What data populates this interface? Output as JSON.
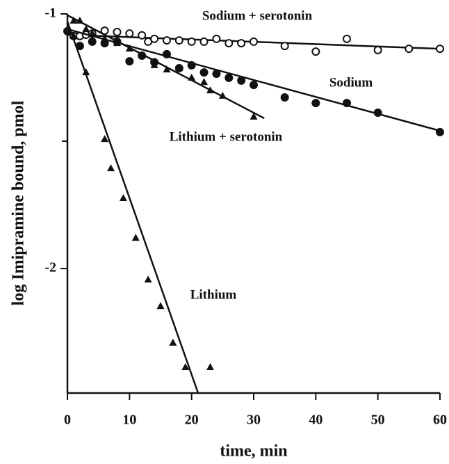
{
  "chart_data": {
    "type": "scatter",
    "x_label": "time, min",
    "y_label": "log Imipramine bound, pmol",
    "xlim": [
      0,
      60
    ],
    "xticks": [
      0,
      10,
      20,
      30,
      40,
      50,
      60
    ],
    "ylim": [
      -2.489,
      -1
    ],
    "yticks": [
      -1,
      -2
    ],
    "minor_yticks": [
      -1.5
    ],
    "grid": false,
    "series": [
      {
        "name": "Sodium + serotonin",
        "marker": "open-circle",
        "color": "#111111",
        "x": [
          1,
          2,
          3,
          4,
          6,
          8,
          10,
          12,
          13,
          14,
          16,
          18,
          20,
          22,
          24,
          26,
          28,
          30,
          35,
          40,
          45,
          50,
          55,
          60
        ],
        "values": [
          -1.087,
          -1.087,
          -1.082,
          -1.077,
          -1.066,
          -1.071,
          -1.077,
          -1.084,
          -1.109,
          -1.098,
          -1.104,
          -1.104,
          -1.109,
          -1.109,
          -1.098,
          -1.115,
          -1.115,
          -1.109,
          -1.126,
          -1.148,
          -1.098,
          -1.142,
          -1.137,
          -1.137
        ],
        "fit_x": [
          0,
          60
        ],
        "fit_y": [
          -1.082,
          -1.137
        ]
      },
      {
        "name": "Sodium",
        "marker": "filled-circle",
        "color": "#111111",
        "x": [
          0,
          2,
          4,
          6,
          8,
          10,
          12,
          14,
          16,
          18,
          20,
          22,
          24,
          26,
          28,
          30,
          35,
          40,
          45,
          50,
          60
        ],
        "values": [
          -1.068,
          -1.126,
          -1.109,
          -1.115,
          -1.109,
          -1.186,
          -1.164,
          -1.19,
          -1.158,
          -1.213,
          -1.202,
          -1.23,
          -1.235,
          -1.251,
          -1.262,
          -1.279,
          -1.328,
          -1.35,
          -1.35,
          -1.388,
          -1.464
        ],
        "fit_x": [
          0,
          60
        ],
        "fit_y": [
          -1.06,
          -1.459
        ]
      },
      {
        "name": "Lithium + serotonin",
        "marker": "triangle",
        "color": "#111111",
        "x": [
          1,
          2,
          3,
          4,
          6,
          8,
          10,
          12,
          14,
          16,
          18,
          20,
          22,
          23,
          25,
          30
        ],
        "values": [
          -1.027,
          -1.027,
          -1.06,
          -1.077,
          -1.098,
          -1.115,
          -1.137,
          -1.164,
          -1.202,
          -1.219,
          -1.213,
          -1.251,
          -1.268,
          -1.301,
          -1.322,
          -1.404
        ],
        "fit_x": [
          0,
          31.7
        ],
        "fit_y": [
          -1.005,
          -1.41
        ]
      },
      {
        "name": "Lithium",
        "marker": "triangle",
        "color": "#111111",
        "x": [
          1,
          3,
          6,
          7,
          9,
          11,
          13,
          15,
          17,
          19,
          23
        ],
        "values": [
          -1.087,
          -1.23,
          -1.492,
          -1.607,
          -1.724,
          -1.88,
          -2.044,
          -2.148,
          -2.292,
          -2.388,
          -2.388
        ],
        "fit_x": [
          0,
          21.05
        ],
        "fit_y": [
          -1.03,
          -2.489
        ]
      }
    ]
  }
}
